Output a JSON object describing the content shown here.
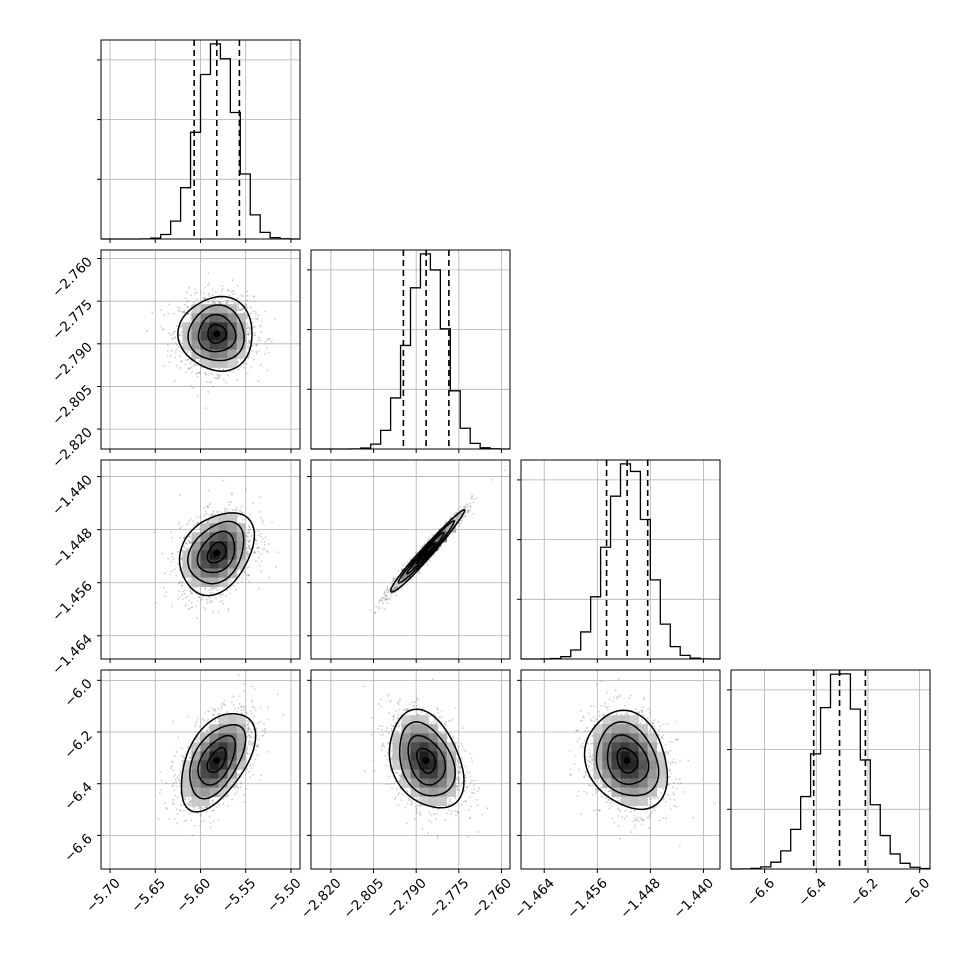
{
  "chart_data": {
    "type": "corner",
    "parameters": [
      {
        "index": 0,
        "mean": -5.582,
        "sd": 0.0205,
        "range": [
          -5.71,
          -5.49
        ],
        "quantiles": [
          -5.607,
          -5.582,
          -5.557
        ],
        "ticks": [
          -5.7,
          -5.65,
          -5.6,
          -5.55,
          -5.5
        ],
        "tick_labels": [
          "−5.70",
          "−5.65",
          "−5.60",
          "−5.55",
          "−5.50"
        ]
      },
      {
        "index": 1,
        "mean": -2.7865,
        "sd": 0.0065,
        "range": [
          -2.827,
          -2.757
        ],
        "quantiles": [
          -2.7945,
          -2.7865,
          -2.7785
        ],
        "ticks": [
          -2.82,
          -2.805,
          -2.79,
          -2.775,
          -2.76
        ],
        "tick_labels": [
          "−2.820",
          "−2.805",
          "−2.790",
          "−2.775",
          "−2.760"
        ]
      },
      {
        "index": 2,
        "mean": -1.4515,
        "sd": 0.0031,
        "range": [
          -1.4675,
          -1.4375
        ],
        "quantiles": [
          -1.4546,
          -1.4515,
          -1.4484
        ],
        "ticks": [
          -1.464,
          -1.456,
          -1.448,
          -1.44
        ],
        "tick_labels": [
          "−1.464",
          "−1.456",
          "−1.448",
          "−1.440"
        ]
      },
      {
        "index": 3,
        "mean": -6.31,
        "sd": 0.095,
        "range": [
          -6.73,
          -5.96
        ],
        "quantiles": [
          -6.41,
          -6.31,
          -6.21
        ],
        "ticks": [
          -6.6,
          -6.4,
          -6.2,
          -6.0
        ],
        "tick_labels": [
          "−6.6",
          "−6.4",
          "−6.2",
          "−6.0"
        ]
      }
    ],
    "correlations": [
      [
        1,
        0,
        0.3,
        0.5
      ],
      [
        0,
        1,
        0.98,
        -0.3
      ],
      [
        0.3,
        0.98,
        1,
        -0.2
      ],
      [
        0.5,
        -0.3,
        -0.2,
        1
      ]
    ],
    "contour_levels_sigma": [
      0.5,
      1.0,
      1.5,
      2.0
    ],
    "hist_bins": 20,
    "quantile_line_style": "dashed",
    "grid": true,
    "colors": {
      "line": "#000000",
      "grid": "#b0b0b0",
      "points": "#777777",
      "background": "#ffffff"
    }
  }
}
